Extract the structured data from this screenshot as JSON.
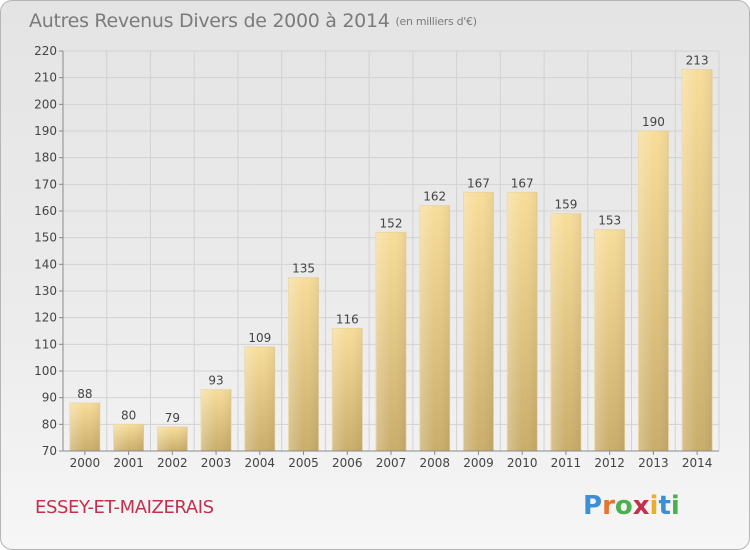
{
  "title": {
    "main": "Autres Revenus Divers de 2000 à 2014",
    "unit": "(en milliers d'€)"
  },
  "commune": "ESSEY-ET-MAIZERAIS",
  "logo": {
    "text": "Proxiti",
    "letter_colors": [
      "#3a8fd6",
      "#e8732a",
      "#4caf50",
      "#c2304d",
      "#e8b02a",
      "#3a8fd6",
      "#4caf50"
    ]
  },
  "colors": {
    "bar_top": "#f8dd9a",
    "bar_bottom": "#c9ad6b",
    "grid": "#d2d2d2",
    "axis": "#8a8a8a",
    "text": "#444444"
  },
  "chart_data": {
    "type": "bar",
    "categories": [
      "2000",
      "2001",
      "2002",
      "2003",
      "2004",
      "2005",
      "2006",
      "2007",
      "2008",
      "2009",
      "2010",
      "2011",
      "2012",
      "2013",
      "2014"
    ],
    "values": [
      88,
      80,
      79,
      93,
      109,
      135,
      116,
      152,
      162,
      167,
      167,
      159,
      153,
      190,
      213
    ],
    "title": "Autres Revenus Divers de 2000 à 2014",
    "xlabel": "",
    "ylabel": "",
    "ylim": [
      70,
      220
    ],
    "yticks": [
      70,
      80,
      90,
      100,
      110,
      120,
      130,
      140,
      150,
      160,
      170,
      180,
      190,
      200,
      210,
      220
    ],
    "grid": true,
    "legend": "none"
  }
}
